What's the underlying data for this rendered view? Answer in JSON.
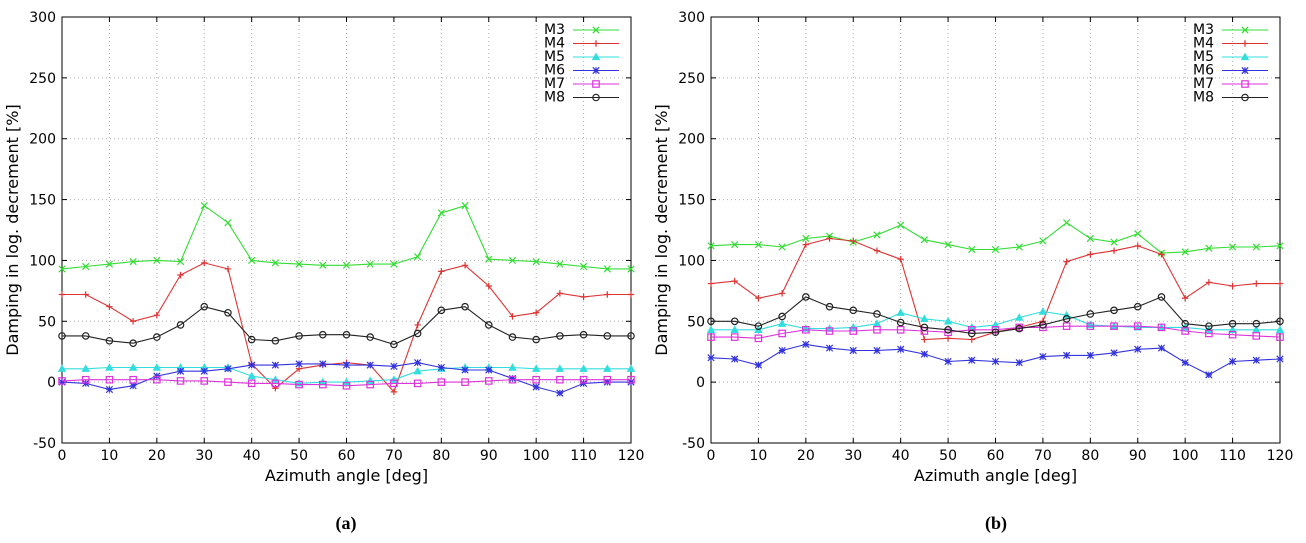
{
  "chart_data": [
    {
      "type": "line",
      "caption": "(a)",
      "xlabel": "Azimuth angle [deg]",
      "ylabel": "Damping in log. decrement [%]",
      "xlim": [
        0,
        120
      ],
      "ylim": [
        -50,
        300
      ],
      "xticks": [
        0,
        10,
        20,
        30,
        40,
        50,
        60,
        70,
        80,
        90,
        100,
        110,
        120
      ],
      "yticks": [
        -50,
        0,
        50,
        100,
        150,
        200,
        250,
        300
      ],
      "grid": true,
      "legend_position": "top-right",
      "x": [
        0,
        5,
        10,
        15,
        20,
        25,
        30,
        35,
        40,
        45,
        50,
        55,
        60,
        65,
        70,
        75,
        80,
        85,
        90,
        95,
        100,
        105,
        110,
        115,
        120
      ],
      "series": [
        {
          "name": "M3",
          "color": "#33dd33",
          "marker": "x",
          "values": [
            93,
            95,
            97,
            99,
            100,
            99,
            145,
            131,
            100,
            98,
            97,
            96,
            96,
            97,
            97,
            103,
            139,
            145,
            101,
            100,
            99,
            97,
            95,
            93,
            93
          ]
        },
        {
          "name": "M4",
          "color": "#dd3333",
          "marker": "plus",
          "values": [
            72,
            72,
            62,
            50,
            55,
            88,
            98,
            93,
            15,
            -5,
            11,
            14,
            16,
            14,
            -8,
            47,
            91,
            96,
            79,
            54,
            57,
            73,
            70,
            72,
            72
          ]
        },
        {
          "name": "M5",
          "color": "#33dddd",
          "marker": "triangle",
          "values": [
            11,
            11,
            12,
            12,
            12,
            12,
            12,
            12,
            5,
            2,
            -1,
            0,
            0,
            1,
            2,
            9,
            11,
            12,
            12,
            12,
            11,
            11,
            11,
            11,
            11
          ]
        },
        {
          "name": "M6",
          "color": "#3333dd",
          "marker": "star",
          "values": [
            0,
            -1,
            -6,
            -3,
            5,
            9,
            9,
            11,
            14,
            14,
            15,
            15,
            14,
            14,
            13,
            16,
            12,
            10,
            10,
            3,
            -4,
            -9,
            -1,
            0,
            0
          ]
        },
        {
          "name": "M7",
          "color": "#dd33dd",
          "marker": "square",
          "values": [
            1,
            2,
            2,
            2,
            2,
            1,
            1,
            0,
            -1,
            -1,
            -2,
            -2,
            -3,
            -2,
            -1,
            -1,
            0,
            0,
            1,
            2,
            2,
            2,
            2,
            2,
            2
          ]
        },
        {
          "name": "M8",
          "color": "#222222",
          "marker": "circle",
          "values": [
            38,
            38,
            34,
            32,
            37,
            47,
            62,
            57,
            35,
            34,
            38,
            39,
            39,
            37,
            31,
            40,
            59,
            62,
            47,
            37,
            35,
            38,
            39,
            38,
            38
          ]
        }
      ]
    },
    {
      "type": "line",
      "caption": "(b)",
      "xlabel": "Azimuth angle [deg]",
      "ylabel": "Damping in log. decrement [%]",
      "xlim": [
        0,
        120
      ],
      "ylim": [
        -50,
        300
      ],
      "xticks": [
        0,
        10,
        20,
        30,
        40,
        50,
        60,
        70,
        80,
        90,
        100,
        110,
        120
      ],
      "yticks": [
        -50,
        0,
        50,
        100,
        150,
        200,
        250,
        300
      ],
      "grid": true,
      "legend_position": "top-right",
      "x": [
        0,
        5,
        10,
        15,
        20,
        25,
        30,
        35,
        40,
        45,
        50,
        55,
        60,
        65,
        70,
        75,
        80,
        85,
        90,
        95,
        100,
        105,
        110,
        115,
        120
      ],
      "series": [
        {
          "name": "M3",
          "color": "#33dd33",
          "marker": "x",
          "values": [
            112,
            113,
            113,
            111,
            118,
            120,
            115,
            121,
            129,
            117,
            113,
            109,
            109,
            111,
            116,
            131,
            118,
            115,
            122,
            106,
            107,
            110,
            111,
            111,
            112
          ]
        },
        {
          "name": "M4",
          "color": "#dd3333",
          "marker": "plus",
          "values": [
            81,
            83,
            69,
            73,
            113,
            118,
            116,
            108,
            101,
            35,
            36,
            35,
            41,
            45,
            50,
            99,
            105,
            108,
            112,
            105,
            69,
            82,
            79,
            81,
            81
          ]
        },
        {
          "name": "M5",
          "color": "#33dddd",
          "marker": "triangle",
          "values": [
            43,
            43,
            43,
            48,
            44,
            44,
            45,
            48,
            57,
            52,
            50,
            45,
            47,
            53,
            58,
            55,
            47,
            46,
            45,
            45,
            45,
            43,
            43,
            43,
            43
          ]
        },
        {
          "name": "M6",
          "color": "#3333dd",
          "marker": "star",
          "values": [
            20,
            19,
            14,
            26,
            31,
            28,
            26,
            26,
            27,
            23,
            17,
            18,
            17,
            16,
            21,
            22,
            22,
            24,
            27,
            28,
            16,
            6,
            17,
            18,
            19
          ]
        },
        {
          "name": "M7",
          "color": "#dd33dd",
          "marker": "square",
          "values": [
            37,
            37,
            36,
            40,
            43,
            42,
            42,
            43,
            43,
            42,
            41,
            43,
            43,
            45,
            45,
            46,
            46,
            46,
            46,
            45,
            42,
            40,
            39,
            38,
            37
          ]
        },
        {
          "name": "M8",
          "color": "#222222",
          "marker": "circle",
          "values": [
            50,
            50,
            46,
            54,
            70,
            62,
            59,
            56,
            49,
            45,
            43,
            40,
            41,
            44,
            47,
            52,
            56,
            59,
            62,
            70,
            48,
            46,
            48,
            48,
            50
          ]
        }
      ]
    }
  ]
}
